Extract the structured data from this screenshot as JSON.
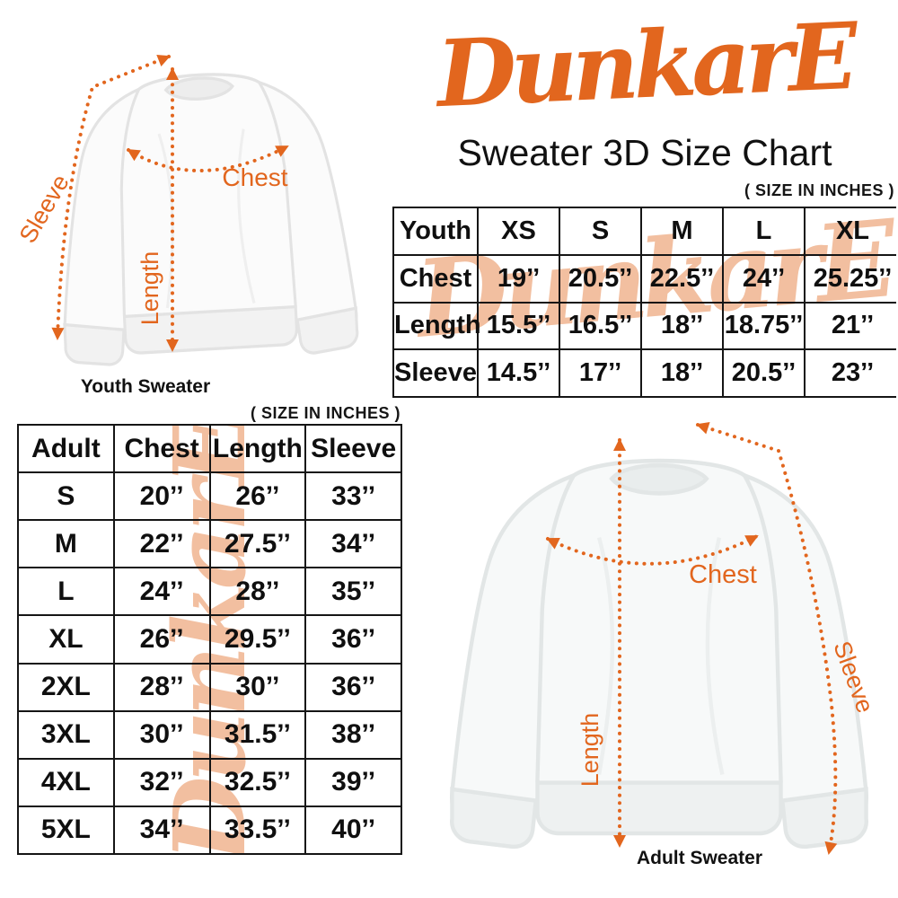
{
  "brand": {
    "logo": "DunkarE",
    "subtitle": "Sweater 3D Size Chart"
  },
  "notes": {
    "size_in_inches": "( SIZE IN INCHES )"
  },
  "colors": {
    "accent_orange": "#E2661E",
    "watermark_peach": "#F2BFA0",
    "table_border": "#151515",
    "text": "#0f0f0f"
  },
  "diagrams": {
    "youth": {
      "caption": "Youth Sweater",
      "sleeve_label": "Sleeve",
      "length_label": "Length",
      "chest_label": "Chest"
    },
    "adult": {
      "caption": "Adult Sweater",
      "sleeve_label": "Sleeve",
      "length_label": "Length",
      "chest_label": "Chest"
    }
  },
  "chart_data": [
    {
      "type": "table",
      "name": "youth_sweater_sizes",
      "unit": "inches",
      "columns": [
        "Youth",
        "XS",
        "S",
        "M",
        "L",
        "XL"
      ],
      "rows": [
        [
          "Chest",
          "19’’",
          "20.5’’",
          "22.5’’",
          "24’’",
          "25.25’’"
        ],
        [
          "Length",
          "15.5’’",
          "16.5’’",
          "18’’",
          "18.75’’",
          "21’’"
        ],
        [
          "Sleeve",
          "14.5’’",
          "17’’",
          "18’’",
          "20.5’’",
          "23’’"
        ]
      ]
    },
    {
      "type": "table",
      "name": "adult_sweater_sizes",
      "unit": "inches",
      "columns": [
        "Adult",
        "Chest",
        "Length",
        "Sleeve"
      ],
      "rows": [
        [
          "S",
          "20’’",
          "26’’",
          "33’’"
        ],
        [
          "M",
          "22’’",
          "27.5’’",
          "34’’"
        ],
        [
          "L",
          "24’’",
          "28’’",
          "35’’"
        ],
        [
          "XL",
          "26’’",
          "29.5’’",
          "36’’"
        ],
        [
          "2XL",
          "28’’",
          "30’’",
          "36’’"
        ],
        [
          "3XL",
          "30’’",
          "31.5’’",
          "38’’"
        ],
        [
          "4XL",
          "32’’",
          "32.5’’",
          "39’’"
        ],
        [
          "5XL",
          "34’’",
          "33.5’’",
          "40’’"
        ]
      ]
    }
  ]
}
